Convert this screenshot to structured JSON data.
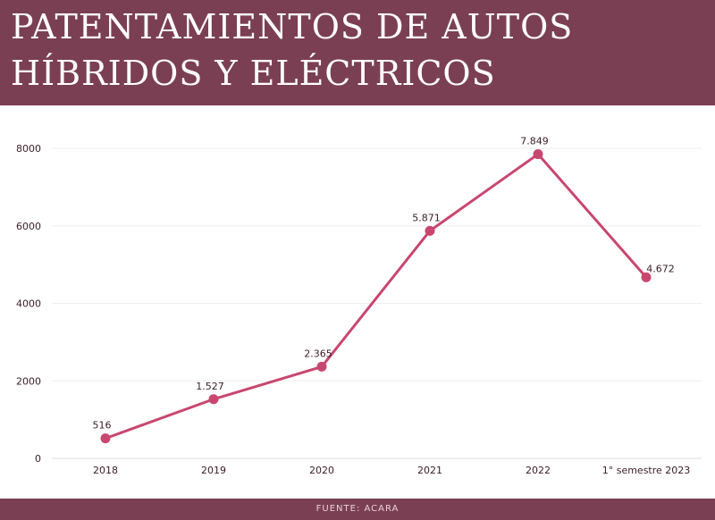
{
  "header": {
    "title_line1": "PATENTAMIENTOS DE AUTOS",
    "title_line2": "HÍBRIDOS Y ELÉCTRICOS"
  },
  "footer": {
    "source": "FUENTE: ACARA"
  },
  "colors": {
    "band": "#7b3f53",
    "line": "#c8476f",
    "text": "#3a1c27",
    "grid": "#eeeeee"
  },
  "chart_data": {
    "type": "line",
    "categories": [
      "2018",
      "2019",
      "2020",
      "2021",
      "2022",
      "1° semestre 2023"
    ],
    "values": [
      516,
      1527,
      2365,
      5871,
      7849,
      4672
    ],
    "data_labels": [
      "516",
      "1.527",
      "2.365",
      "5.871",
      "7.849",
      "4.672"
    ],
    "y_ticks": [
      0,
      2000,
      4000,
      6000,
      8000
    ],
    "y_tick_labels": [
      "0",
      "2000",
      "4000",
      "6000",
      "8000"
    ],
    "ylim": [
      0,
      8000
    ],
    "grid": true,
    "legend": "none"
  }
}
